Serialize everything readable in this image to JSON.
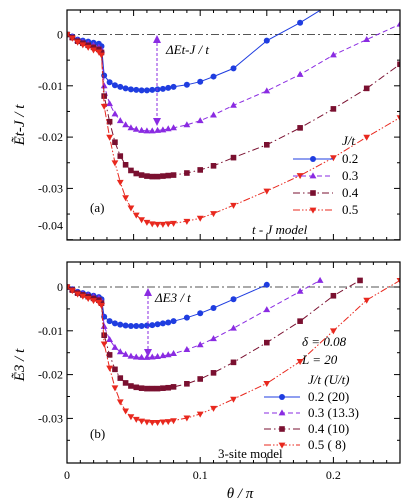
{
  "chart_data": [
    {
      "type": "line",
      "panel": "(a)",
      "ylabel": "Ẽt-J / t",
      "xlim": [
        0,
        0.25
      ],
      "ylim": [
        -0.045,
        0.002
      ],
      "yticks": [
        "0",
        "-0.01",
        "-0.02",
        "-0.03",
        "-0.04"
      ],
      "annotation": "ΔEt-J / t",
      "model_label": "t - J model",
      "legend_title": "J/t",
      "legend_entries": [
        "0.2",
        "0.3",
        "0.4",
        "0.5"
      ],
      "series": [
        {
          "name": "0.2",
          "color": "#1f3de0",
          "marker": "circle",
          "dash": "solid",
          "x": [
            0,
            0.004,
            0.008,
            0.0119,
            0.0159,
            0.0199,
            0.0239,
            0.0259,
            0.0279,
            0.032,
            0.036,
            0.04,
            0.044,
            0.048,
            0.052,
            0.056,
            0.06,
            0.064,
            0.068,
            0.072,
            0.076,
            0.08,
            0.09,
            0.1,
            0.11,
            0.125,
            0.15,
            0.175,
            0.195
          ],
          "y": [
            0,
            -0.0004,
            -0.001,
            -0.0012,
            -0.0014,
            -0.0016,
            -0.0018,
            -0.0023,
            -0.008,
            -0.0093,
            -0.0099,
            -0.0102,
            -0.0105,
            -0.0107,
            -0.0108,
            -0.0109,
            -0.0109,
            -0.0108,
            -0.0107,
            -0.0106,
            -0.0104,
            -0.0102,
            -0.0098,
            -0.0092,
            -0.0082,
            -0.0066,
            -0.0012,
            0.0023,
            0.0055
          ]
        },
        {
          "name": "0.3",
          "color": "#8a2be2",
          "marker": "triangle",
          "dash": "dashed",
          "x": [
            0,
            0.004,
            0.008,
            0.0119,
            0.0159,
            0.0199,
            0.0239,
            0.0259,
            0.0279,
            0.032,
            0.036,
            0.04,
            0.044,
            0.048,
            0.052,
            0.056,
            0.06,
            0.064,
            0.068,
            0.072,
            0.076,
            0.08,
            0.09,
            0.1,
            0.11,
            0.125,
            0.15,
            0.175,
            0.2,
            0.225,
            0.25
          ],
          "y": [
            0,
            -0.0005,
            -0.0012,
            -0.0015,
            -0.0018,
            -0.0021,
            -0.0025,
            -0.003,
            -0.01,
            -0.0135,
            -0.0155,
            -0.0168,
            -0.0176,
            -0.0182,
            -0.0185,
            -0.0187,
            -0.0188,
            -0.0188,
            -0.0187,
            -0.0186,
            -0.0184,
            -0.0182,
            -0.0176,
            -0.0168,
            -0.0157,
            -0.0138,
            -0.011,
            -0.0078,
            -0.004,
            -0.001,
            0.002
          ]
        },
        {
          "name": "0.4",
          "color": "#7a1030",
          "marker": "square",
          "dash": "dashdot",
          "x": [
            0,
            0.004,
            0.008,
            0.0119,
            0.0159,
            0.0199,
            0.0239,
            0.0259,
            0.0279,
            0.032,
            0.036,
            0.04,
            0.044,
            0.048,
            0.052,
            0.056,
            0.06,
            0.064,
            0.068,
            0.072,
            0.076,
            0.08,
            0.09,
            0.1,
            0.11,
            0.125,
            0.15,
            0.175,
            0.2,
            0.225,
            0.25
          ],
          "y": [
            0,
            -0.0006,
            -0.0013,
            -0.0017,
            -0.0021,
            -0.0025,
            -0.0029,
            -0.0035,
            -0.012,
            -0.017,
            -0.021,
            -0.0237,
            -0.0254,
            -0.0265,
            -0.0271,
            -0.0274,
            -0.0276,
            -0.0277,
            -0.0277,
            -0.0276,
            -0.0275,
            -0.0274,
            -0.027,
            -0.0264,
            -0.0256,
            -0.024,
            -0.0215,
            -0.0182,
            -0.0145,
            -0.0105,
            -0.0058
          ]
        },
        {
          "name": "0.5",
          "color": "#e8281e",
          "marker": "triangle-down",
          "dash": "dashdotdot",
          "x": [
            0,
            0.004,
            0.008,
            0.0119,
            0.0159,
            0.0199,
            0.0239,
            0.0259,
            0.0279,
            0.032,
            0.036,
            0.04,
            0.044,
            0.048,
            0.052,
            0.056,
            0.06,
            0.064,
            0.068,
            0.072,
            0.076,
            0.08,
            0.09,
            0.1,
            0.11,
            0.125,
            0.15,
            0.175,
            0.2,
            0.225,
            0.25
          ],
          "y": [
            0,
            -0.0007,
            -0.0015,
            -0.002,
            -0.0025,
            -0.003,
            -0.0034,
            -0.004,
            -0.014,
            -0.02,
            -0.025,
            -0.0288,
            -0.0318,
            -0.0338,
            -0.0352,
            -0.0361,
            -0.0366,
            -0.0369,
            -0.037,
            -0.037,
            -0.0369,
            -0.0368,
            -0.0364,
            -0.0358,
            -0.0349,
            -0.0333,
            -0.0305,
            -0.0275,
            -0.024,
            -0.02,
            -0.0162
          ]
        }
      ]
    },
    {
      "type": "line",
      "panel": "(b)",
      "ylabel": "Ẽ3 / t",
      "xlabel": "θ / π",
      "xlim": [
        0,
        0.25
      ],
      "ylim": [
        -0.035,
        0.002
      ],
      "xticks": [
        "0",
        "0.1",
        "0.2"
      ],
      "yticks": [
        "0",
        "-0.01",
        "-0.02",
        "-0.03"
      ],
      "annotation": "ΔE3 / t",
      "params": [
        "δ = 0.08",
        "L = 20"
      ],
      "model_label": "3-site model",
      "legend_title": "J/t  (U/t)",
      "legend_entries": [
        "0.2  (20)",
        "0.3  (13.3)",
        "0.4  (10)",
        "0.5  (  8)"
      ],
      "series": [
        {
          "name": "0.2  (20)",
          "color": "#1f3de0",
          "marker": "circle",
          "dash": "solid",
          "x": [
            0,
            0.004,
            0.008,
            0.0119,
            0.0159,
            0.0199,
            0.0239,
            0.0259,
            0.0279,
            0.032,
            0.036,
            0.04,
            0.044,
            0.048,
            0.052,
            0.056,
            0.06,
            0.064,
            0.068,
            0.072,
            0.076,
            0.08,
            0.09,
            0.1,
            0.11,
            0.125,
            0.15
          ],
          "y": [
            0,
            -0.0005,
            -0.0011,
            -0.0014,
            -0.0017,
            -0.002,
            -0.0023,
            -0.0028,
            -0.0068,
            -0.0078,
            -0.0083,
            -0.0086,
            -0.0088,
            -0.0089,
            -0.0089,
            -0.0089,
            -0.0088,
            -0.0087,
            -0.0085,
            -0.0083,
            -0.0081,
            -0.0078,
            -0.007,
            -0.006,
            -0.0048,
            -0.0028,
            0.0005
          ]
        },
        {
          "name": "0.3  (13.3)",
          "color": "#8a2be2",
          "marker": "triangle",
          "dash": "dashed",
          "x": [
            0,
            0.004,
            0.008,
            0.0119,
            0.0159,
            0.0199,
            0.0239,
            0.0259,
            0.0279,
            0.032,
            0.036,
            0.04,
            0.044,
            0.048,
            0.052,
            0.056,
            0.06,
            0.064,
            0.068,
            0.072,
            0.076,
            0.08,
            0.09,
            0.1,
            0.11,
            0.125,
            0.15,
            0.175,
            0.19
          ],
          "y": [
            0,
            -0.0006,
            -0.0013,
            -0.0016,
            -0.0019,
            -0.0022,
            -0.0026,
            -0.0032,
            -0.009,
            -0.012,
            -0.0138,
            -0.0148,
            -0.0154,
            -0.0158,
            -0.016,
            -0.0161,
            -0.0161,
            -0.016,
            -0.0159,
            -0.0157,
            -0.0155,
            -0.0152,
            -0.0143,
            -0.0132,
            -0.0118,
            -0.0094,
            -0.0052,
            -0.001,
            0.0015
          ]
        },
        {
          "name": "0.4  (10)",
          "color": "#7a1030",
          "marker": "square",
          "dash": "dashdot",
          "x": [
            0,
            0.004,
            0.008,
            0.0119,
            0.0159,
            0.0199,
            0.0239,
            0.0259,
            0.0279,
            0.032,
            0.036,
            0.04,
            0.044,
            0.048,
            0.052,
            0.056,
            0.06,
            0.064,
            0.068,
            0.072,
            0.076,
            0.08,
            0.09,
            0.1,
            0.11,
            0.125,
            0.15,
            0.175,
            0.2,
            0.22
          ],
          "y": [
            0,
            -0.0007,
            -0.0014,
            -0.0018,
            -0.0022,
            -0.0026,
            -0.003,
            -0.0037,
            -0.011,
            -0.0155,
            -0.0188,
            -0.0208,
            -0.0219,
            -0.0226,
            -0.0229,
            -0.0231,
            -0.0232,
            -0.0232,
            -0.0232,
            -0.0231,
            -0.023,
            -0.0228,
            -0.0221,
            -0.021,
            -0.0196,
            -0.0172,
            -0.0127,
            -0.0078,
            -0.002,
            0.0015
          ]
        },
        {
          "name": "0.5  (  8)",
          "color": "#e8281e",
          "marker": "triangle-down",
          "dash": "dashdotdot",
          "x": [
            0,
            0.004,
            0.008,
            0.0119,
            0.0159,
            0.0199,
            0.0239,
            0.0259,
            0.0279,
            0.032,
            0.036,
            0.04,
            0.044,
            0.048,
            0.052,
            0.056,
            0.06,
            0.064,
            0.068,
            0.072,
            0.076,
            0.08,
            0.09,
            0.1,
            0.11,
            0.125,
            0.15,
            0.175,
            0.2,
            0.225,
            0.25
          ],
          "y": [
            0,
            -0.0008,
            -0.0016,
            -0.0021,
            -0.0026,
            -0.0031,
            -0.0035,
            -0.0042,
            -0.013,
            -0.0185,
            -0.023,
            -0.0262,
            -0.0283,
            -0.0296,
            -0.0302,
            -0.0306,
            -0.0308,
            -0.0309,
            -0.0309,
            -0.0308,
            -0.0307,
            -0.0305,
            -0.0299,
            -0.029,
            -0.0277,
            -0.0256,
            -0.022,
            -0.017,
            -0.01,
            -0.003,
            0.0015
          ]
        }
      ]
    }
  ]
}
